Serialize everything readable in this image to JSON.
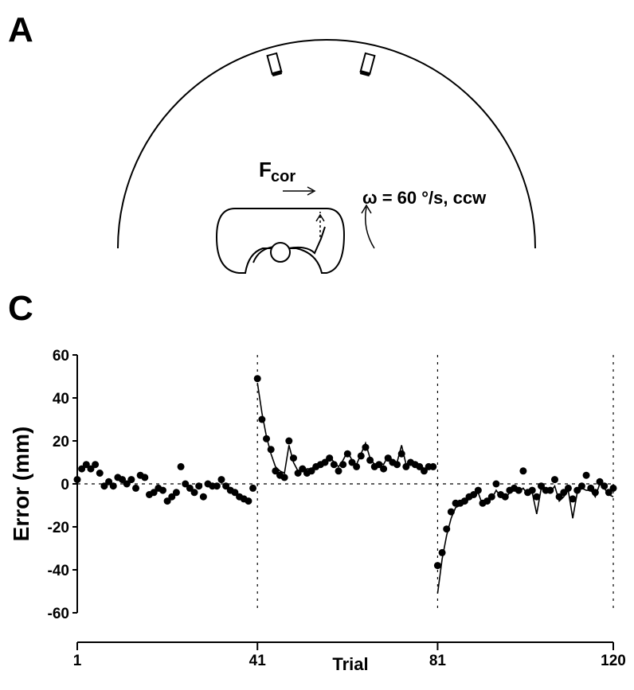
{
  "panels": {
    "a": {
      "label": "A",
      "force_label": "F",
      "force_subscript": "cor",
      "rotation_label": "ω = 60 °/s,  ccw"
    },
    "c": {
      "label": "C"
    }
  },
  "chart_data": {
    "type": "scatter",
    "xlabel": "Trial",
    "ylabel": "Error (mm)",
    "xlim": [
      1,
      120
    ],
    "xticks": [
      1,
      41,
      81,
      120
    ],
    "ylim": [
      -60,
      60
    ],
    "yticks": [
      -60,
      -40,
      -20,
      0,
      20,
      40,
      60
    ],
    "reference_x": [
      41,
      81,
      120
    ],
    "reference_y": 0,
    "series": [
      {
        "marker": "dot",
        "color": "#000000",
        "x": [
          1,
          2,
          3,
          4,
          5,
          6,
          7,
          8,
          9,
          10,
          11,
          12,
          13,
          14,
          15,
          16,
          17,
          18,
          19,
          20,
          21,
          22,
          23,
          24,
          25,
          26,
          27,
          28,
          29,
          30,
          31,
          32,
          33,
          34,
          35,
          36,
          37,
          38,
          39,
          40,
          41,
          42,
          43,
          44,
          45,
          46,
          47,
          48,
          49,
          50,
          51,
          52,
          53,
          54,
          55,
          56,
          57,
          58,
          59,
          60,
          61,
          62,
          63,
          64,
          65,
          66,
          67,
          68,
          69,
          70,
          71,
          72,
          73,
          74,
          75,
          76,
          77,
          78,
          79,
          80,
          81,
          82,
          83,
          84,
          85,
          86,
          87,
          88,
          89,
          90,
          91,
          92,
          93,
          94,
          95,
          96,
          97,
          98,
          99,
          100,
          101,
          102,
          103,
          104,
          105,
          106,
          107,
          108,
          109,
          110,
          111,
          112,
          113,
          114,
          115,
          116,
          117,
          118,
          119,
          120
        ],
        "values": [
          2,
          7,
          9,
          7,
          9,
          5,
          -1,
          1,
          -1,
          3,
          2,
          0,
          2,
          -2,
          4,
          3,
          -5,
          -4,
          -2,
          -3,
          -8,
          -6,
          -4,
          8,
          0,
          -2,
          -4,
          -1,
          -6,
          0,
          -1,
          -1,
          2,
          -1,
          -3,
          -4,
          -6,
          -7,
          -8,
          -2,
          49,
          30,
          21,
          16,
          6,
          4,
          3,
          20,
          12,
          5,
          7,
          5,
          6,
          8,
          9,
          10,
          12,
          9,
          6,
          9,
          14,
          10,
          8,
          13,
          17,
          11,
          8,
          9,
          7,
          12,
          10,
          9,
          14,
          8,
          10,
          9,
          8,
          6,
          8,
          8,
          -38,
          -32,
          -21,
          -13,
          -9,
          -9,
          -8,
          -6,
          -5,
          -3,
          -9,
          -8,
          -6,
          0,
          -5,
          -6,
          -3,
          -2,
          -3,
          6,
          -4,
          -3,
          -6,
          -1,
          -3,
          -3,
          2,
          -6,
          -4,
          -2,
          -7,
          -3,
          -1,
          4,
          -2,
          -4,
          1,
          -1,
          -4,
          -2
        ]
      },
      {
        "marker": "line",
        "color": "#000000",
        "x": [
          41,
          42,
          43,
          44,
          45,
          46,
          47,
          48,
          49,
          50,
          51,
          52,
          53,
          54,
          55,
          56,
          57,
          58,
          59,
          60,
          61,
          62,
          63,
          64,
          65,
          66,
          67,
          68,
          69,
          70,
          71,
          72,
          73,
          74,
          75,
          76,
          77,
          78,
          79,
          80
        ],
        "values": [
          47,
          33,
          22,
          14,
          8,
          6,
          5,
          18,
          10,
          6,
          6,
          7,
          7,
          9,
          10,
          11,
          13,
          10,
          8,
          11,
          15,
          11,
          9,
          14,
          19,
          12,
          9,
          10,
          9,
          13,
          11,
          10,
          18,
          9,
          11,
          10,
          9,
          7,
          8,
          8
        ]
      },
      {
        "marker": "line",
        "color": "#000000",
        "x": [
          81,
          82,
          83,
          84,
          85,
          86,
          87,
          88,
          89,
          90,
          91,
          92,
          93,
          94,
          95,
          96,
          97,
          98,
          99,
          100,
          101,
          102,
          103,
          104,
          105,
          106,
          107,
          108,
          109,
          110,
          111,
          112,
          113,
          114,
          115,
          116,
          117,
          118,
          119,
          120
        ],
        "values": [
          -51,
          -35,
          -24,
          -16,
          -11,
          -10,
          -9,
          -7,
          -6,
          -4,
          -10,
          -8,
          -7,
          -3,
          -6,
          -7,
          -4,
          -3,
          -4,
          -2,
          -5,
          -4,
          -14,
          -2,
          -4,
          -4,
          -1,
          -8,
          -6,
          -3,
          -16,
          -4,
          -2,
          -3,
          -3,
          -6,
          0,
          -2,
          -5,
          -6
        ]
      }
    ]
  }
}
